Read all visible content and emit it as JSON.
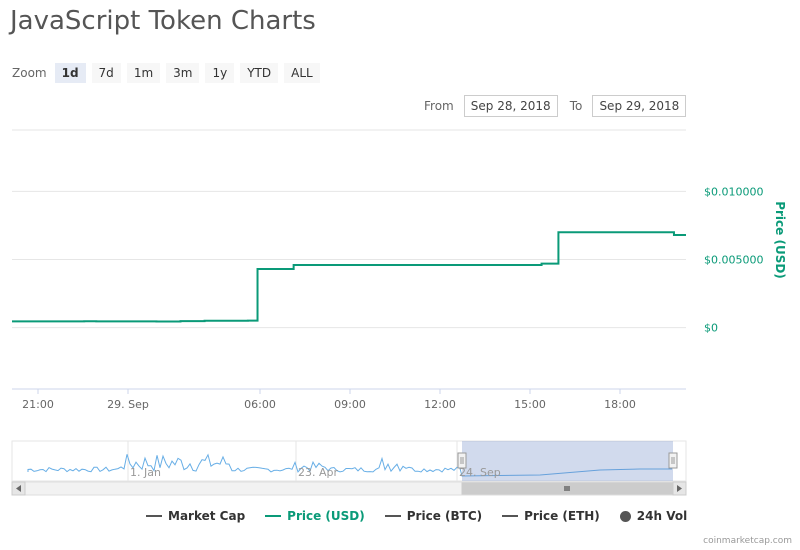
{
  "page": {
    "title": "JavaScript Token Charts"
  },
  "zoom": {
    "label": "Zoom",
    "buttons": [
      "1d",
      "7d",
      "1m",
      "3m",
      "1y",
      "YTD",
      "ALL"
    ],
    "active": "1d"
  },
  "range": {
    "from_label": "From",
    "from_value": "Sep 28, 2018",
    "to_label": "To",
    "to_value": "Sep 29, 2018"
  },
  "chart_data": {
    "type": "line",
    "x_tick_labels": [
      "21:00",
      "29. Sep",
      "06:00",
      "09:00",
      "12:00",
      "15:00",
      "18:00"
    ],
    "y_tick_labels": [
      "$0.010000",
      "$0.005000",
      "$0"
    ],
    "ylabel": "Price (USD)",
    "ylim": [
      -0.0045,
      0.0145
    ],
    "grid": true,
    "series": [
      {
        "name": "Price (USD)",
        "color": "#0a9a78",
        "points": [
          [
            0,
            0.00046
          ],
          [
            0.15,
            0.00046
          ],
          [
            0.25,
            0.00046
          ],
          [
            0.3,
            0.00047
          ],
          [
            0.35,
            0.00046
          ],
          [
            0.4,
            0.00046
          ],
          [
            0.5,
            0.00046
          ],
          [
            0.6,
            0.00045
          ],
          [
            0.7,
            0.00048
          ],
          [
            0.8,
            0.00051
          ],
          [
            0.85,
            0.00051
          ],
          [
            0.95,
            0.00051
          ],
          [
            0.98,
            0.00052
          ],
          [
            1.02,
            0.0043
          ],
          [
            1.15,
            0.0043
          ],
          [
            1.17,
            0.0046
          ],
          [
            1.2,
            0.0046
          ],
          [
            1.5,
            0.0046
          ],
          [
            1.8,
            0.0046
          ],
          [
            2.1,
            0.0046
          ],
          [
            2.15,
            0.0046
          ],
          [
            2.2,
            0.0047
          ],
          [
            2.24,
            0.0047
          ],
          [
            2.27,
            0.007
          ],
          [
            2.5,
            0.007
          ],
          [
            2.65,
            0.007
          ],
          [
            2.72,
            0.007
          ],
          [
            2.75,
            0.0068
          ],
          [
            2.8,
            0.0068
          ]
        ]
      }
    ],
    "navigator": {
      "labels": [
        "1. Jan",
        "23. Apr",
        "24. Sep"
      ]
    },
    "legend": [
      {
        "name": "Market Cap",
        "color": "#555555",
        "marker": "line"
      },
      {
        "name": "Price (USD)",
        "color": "#0a9a78",
        "marker": "line"
      },
      {
        "name": "Price (BTC)",
        "color": "#555555",
        "marker": "line"
      },
      {
        "name": "Price (ETH)",
        "color": "#555555",
        "marker": "line"
      },
      {
        "name": "24h Vol",
        "color": "#555555",
        "marker": "dot"
      }
    ]
  },
  "credit": "coinmarketcap.com"
}
